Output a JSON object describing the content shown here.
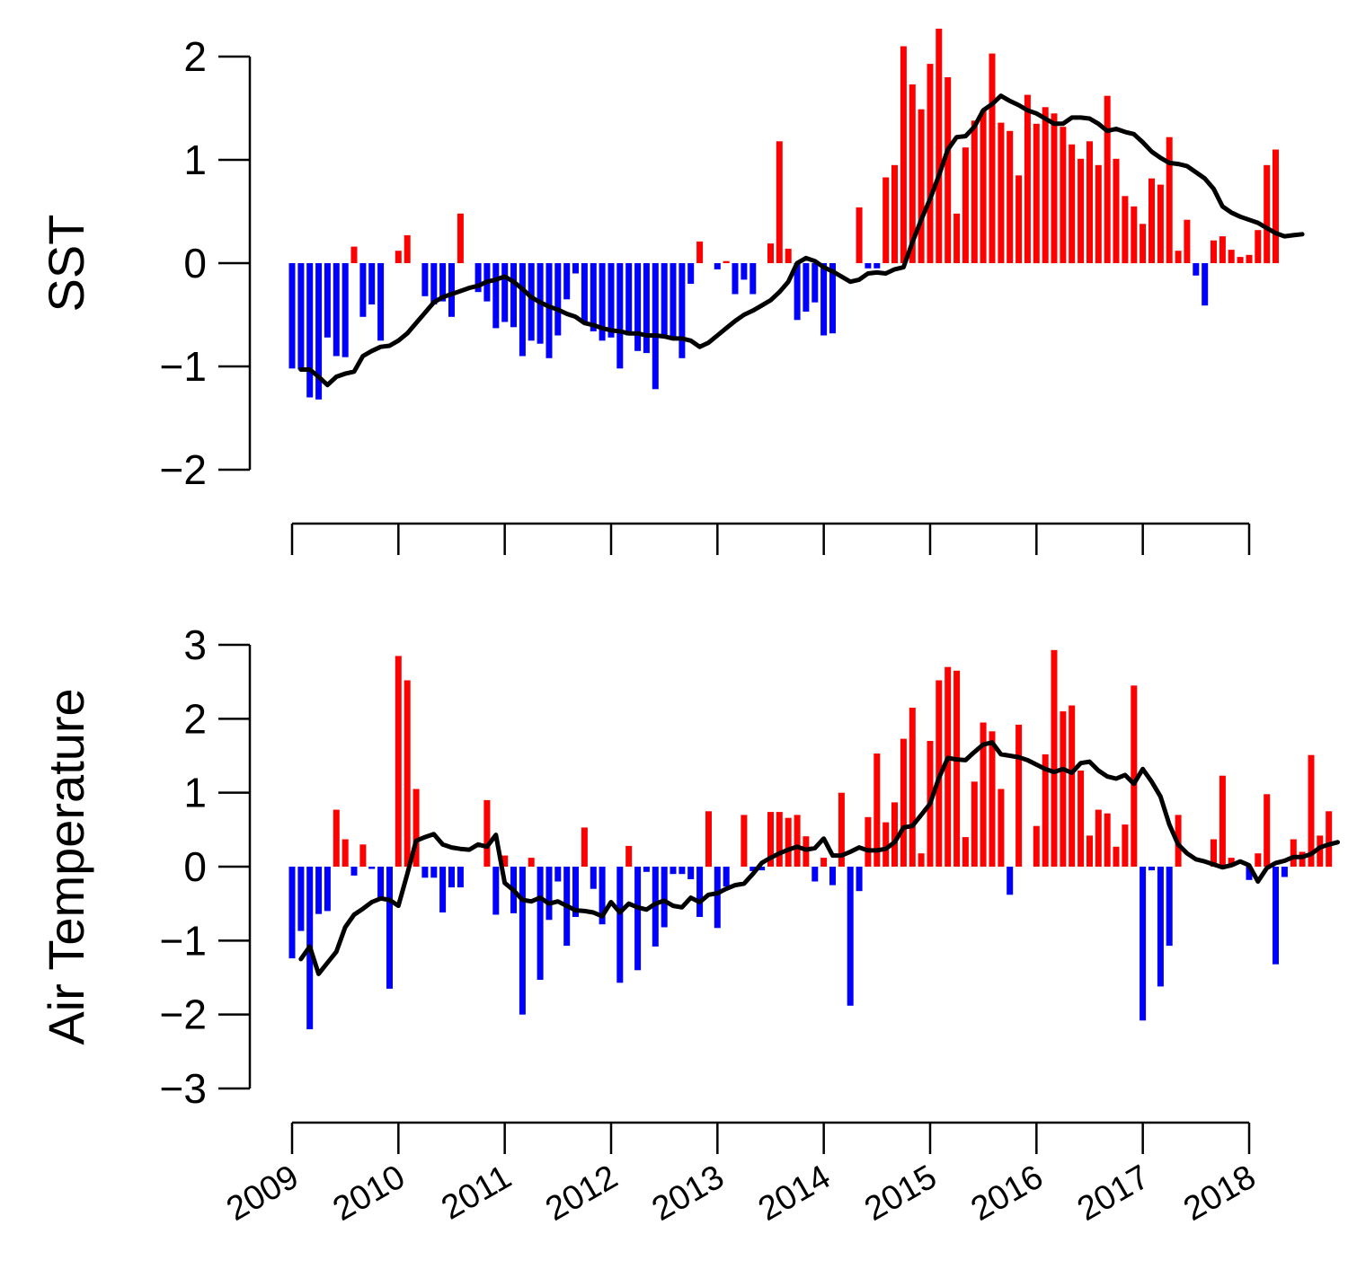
{
  "x_tick_labels": [
    "2009",
    "2010",
    "2011",
    "2012",
    "2013",
    "2014",
    "2015",
    "2016",
    "2017",
    "2018"
  ],
  "colors": {
    "positive": "#ff0000",
    "negative": "#0000ff",
    "line": "#000000"
  },
  "chart_data": [
    {
      "type": "bar",
      "ylabel": "SST",
      "ylim": [
        -2,
        2
      ],
      "yticks": [
        -2,
        -1,
        0,
        1,
        2
      ],
      "x_start": 2009.0,
      "x_step": 0.08333,
      "x_start_line": 2009.083,
      "series": [
        {
          "kind": "bar",
          "values": [
            -1.02,
            -1.03,
            -1.3,
            -1.32,
            -0.72,
            -0.9,
            -0.91,
            0.16,
            -0.52,
            -0.4,
            -0.75,
            0,
            0.12,
            0.27,
            0,
            -0.32,
            -0.4,
            -0.37,
            -0.52,
            0.48,
            0,
            -0.28,
            -0.37,
            -0.63,
            -0.57,
            -0.62,
            -0.9,
            -0.75,
            -0.78,
            -0.92,
            -0.7,
            -0.35,
            -0.1,
            -0.58,
            -0.66,
            -0.75,
            -0.72,
            -1.02,
            -0.7,
            -0.85,
            -0.87,
            -1.22,
            -0.7,
            -0.73,
            -0.92,
            -0.2,
            0.21,
            0,
            -0.06,
            0.02,
            -0.3,
            -0.16,
            -0.3,
            0,
            0.19,
            1.18,
            0.14,
            -0.55,
            -0.47,
            -0.38,
            -0.7,
            -0.68,
            0,
            0,
            0.54,
            -0.05,
            -0.05,
            0.83,
            0.95,
            2.1,
            1.73,
            1.49,
            1.93,
            2.27,
            1.8,
            0.48,
            1.12,
            1.38,
            1.48,
            2.03,
            1.36,
            1.28,
            0.85,
            1.63,
            1.35,
            1.51,
            1.45,
            1.32,
            1.15,
            1.01,
            1.18,
            0.95,
            1.62,
            1.01,
            0.65,
            0.55,
            0.38,
            0.82,
            0.76,
            1.22,
            0.12,
            0.42,
            -0.12,
            -0.41,
            0.22,
            0.26,
            0.13,
            0.06,
            0.08,
            0.32,
            0.95,
            1.1
          ]
        },
        {
          "kind": "line",
          "values": [
            -1.03,
            -1.03,
            -1.1,
            -1.18,
            -1.1,
            -1.07,
            -1.05,
            -0.9,
            -0.85,
            -0.81,
            -0.8,
            -0.75,
            -0.68,
            -0.58,
            -0.48,
            -0.38,
            -0.33,
            -0.3,
            -0.27,
            -0.24,
            -0.22,
            -0.18,
            -0.16,
            -0.13,
            -0.18,
            -0.25,
            -0.33,
            -0.38,
            -0.42,
            -0.45,
            -0.49,
            -0.52,
            -0.58,
            -0.6,
            -0.63,
            -0.65,
            -0.66,
            -0.68,
            -0.68,
            -0.7,
            -0.7,
            -0.71,
            -0.73,
            -0.73,
            -0.75,
            -0.81,
            -0.77,
            -0.7,
            -0.63,
            -0.56,
            -0.5,
            -0.46,
            -0.41,
            -0.36,
            -0.28,
            -0.18,
            0.0,
            0.05,
            0.02,
            -0.04,
            -0.08,
            -0.13,
            -0.18,
            -0.16,
            -0.1,
            -0.09,
            -0.1,
            -0.06,
            -0.04,
            0.2,
            0.42,
            0.62,
            0.85,
            1.1,
            1.22,
            1.23,
            1.32,
            1.48,
            1.54,
            1.62,
            1.57,
            1.53,
            1.48,
            1.45,
            1.4,
            1.35,
            1.35,
            1.41,
            1.41,
            1.4,
            1.35,
            1.28,
            1.3,
            1.27,
            1.25,
            1.17,
            1.08,
            1.02,
            0.97,
            0.96,
            0.94,
            0.88,
            0.82,
            0.72,
            0.55,
            0.49,
            0.45,
            0.42,
            0.39,
            0.34,
            0.29,
            0.26,
            0.27,
            0.28
          ]
        }
      ]
    },
    {
      "type": "bar",
      "ylabel": "Air Temperature",
      "ylim": [
        -3,
        3
      ],
      "yticks": [
        -3,
        -2,
        -1,
        0,
        1,
        2,
        3
      ],
      "x_start": 2009.0,
      "x_step": 0.08333,
      "x_start_line": 2009.083,
      "series": [
        {
          "kind": "bar",
          "values": [
            -1.24,
            -0.87,
            -2.2,
            -0.64,
            -0.6,
            0.77,
            0.37,
            -0.12,
            0.3,
            -0.03,
            -0.44,
            -1.65,
            2.85,
            2.52,
            1.05,
            -0.15,
            -0.15,
            -0.62,
            -0.28,
            -0.28,
            0,
            0,
            0.9,
            -0.65,
            0.15,
            -0.63,
            -2.0,
            0.12,
            -1.53,
            -0.72,
            -0.2,
            -1.07,
            -0.68,
            0.53,
            -0.3,
            -0.78,
            0,
            -1.57,
            0.28,
            -1.4,
            -0.07,
            -1.08,
            -0.82,
            -0.1,
            -0.1,
            -0.17,
            -0.68,
            0.75,
            -0.83,
            -0.27,
            0,
            0.7,
            -0.06,
            -0.05,
            0.74,
            0.74,
            0.66,
            0.7,
            0.41,
            -0.2,
            0.12,
            -0.25,
            1.0,
            -1.88,
            -0.33,
            0.67,
            1.53,
            0.6,
            0.87,
            1.73,
            2.15,
            0.18,
            1.7,
            2.52,
            2.7,
            2.65,
            0.4,
            1.15,
            1.95,
            1.83,
            1.05,
            -0.38,
            1.92,
            0,
            0.55,
            1.52,
            2.93,
            2.1,
            2.18,
            1.3,
            0.42,
            0.77,
            0.72,
            0.27,
            0.57,
            2.45,
            -2.08,
            -0.05,
            -1.62,
            -1.07,
            0.7,
            0,
            0,
            0,
            0.37,
            1.23,
            0.12,
            0,
            -0.18,
            0.18,
            0.98,
            -1.32,
            -0.14,
            0.37,
            0.2,
            1.51,
            0.42,
            0.75
          ]
        },
        {
          "kind": "line",
          "values": [
            -1.25,
            -1.08,
            -1.45,
            -1.3,
            -1.15,
            -0.82,
            -0.65,
            -0.57,
            -0.48,
            -0.43,
            -0.45,
            -0.53,
            -0.1,
            0.35,
            0.4,
            0.44,
            0.3,
            0.26,
            0.24,
            0.23,
            0.3,
            0.27,
            0.43,
            -0.22,
            -0.32,
            -0.45,
            -0.47,
            -0.42,
            -0.5,
            -0.47,
            -0.53,
            -0.59,
            -0.6,
            -0.62,
            -0.67,
            -0.48,
            -0.62,
            -0.5,
            -0.55,
            -0.58,
            -0.5,
            -0.46,
            -0.53,
            -0.55,
            -0.42,
            -0.48,
            -0.38,
            -0.36,
            -0.3,
            -0.25,
            -0.23,
            -0.1,
            0.05,
            0.12,
            0.18,
            0.23,
            0.27,
            0.23,
            0.25,
            0.38,
            0.15,
            0.15,
            0.2,
            0.26,
            0.22,
            0.22,
            0.24,
            0.33,
            0.53,
            0.55,
            0.7,
            0.85,
            1.2,
            1.47,
            1.45,
            1.44,
            1.55,
            1.65,
            1.68,
            1.52,
            1.5,
            1.48,
            1.44,
            1.38,
            1.32,
            1.28,
            1.32,
            1.27,
            1.4,
            1.42,
            1.3,
            1.22,
            1.19,
            1.24,
            1.12,
            1.32,
            1.15,
            0.95,
            0.57,
            0.3,
            0.18,
            0.1,
            0.07,
            0.03,
            -0.01,
            0.02,
            0.07,
            0.02,
            -0.2,
            -0.02,
            0.05,
            0.08,
            0.13,
            0.13,
            0.17,
            0.26,
            0.3,
            0.33
          ]
        }
      ]
    }
  ]
}
